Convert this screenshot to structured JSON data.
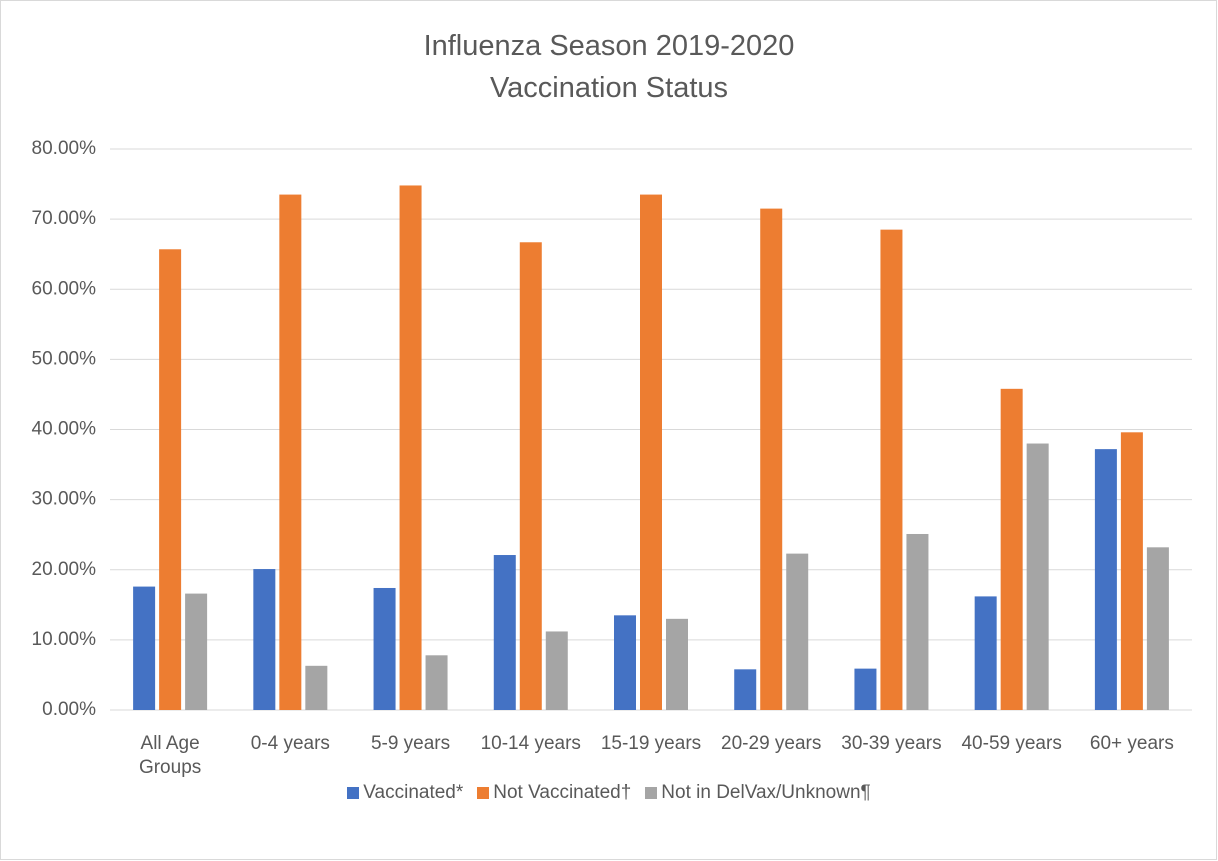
{
  "chart_data": {
    "type": "bar",
    "title": "Influenza Season 2019-2020",
    "subtitle": "Vaccination Status",
    "categories": [
      "All Age Groups",
      "0-4 years",
      "5-9 years",
      "10-14 years",
      "15-19 years",
      "20-29 years",
      "30-39 years",
      "40-59 years",
      "60+ years"
    ],
    "series": [
      {
        "name": "Vaccinated*",
        "color": "#4472c4",
        "values": [
          17.6,
          20.1,
          17.4,
          22.1,
          13.5,
          5.8,
          5.9,
          16.2,
          37.2
        ]
      },
      {
        "name": "Not Vaccinated†",
        "color": "#ed7d31",
        "values": [
          65.7,
          73.5,
          74.8,
          66.7,
          73.5,
          71.5,
          68.5,
          45.8,
          39.6
        ]
      },
      {
        "name": "Not in DelVax/Unknown¶",
        "color": "#a5a5a5",
        "values": [
          16.6,
          6.3,
          7.8,
          11.2,
          13.0,
          22.3,
          25.1,
          38.0,
          23.2
        ]
      }
    ],
    "ylim": [
      0,
      80
    ],
    "yticks": [
      {
        "value": 0,
        "label": "0.00%"
      },
      {
        "value": 10,
        "label": "10.00%"
      },
      {
        "value": 20,
        "label": "20.00%"
      },
      {
        "value": 30,
        "label": "30.00%"
      },
      {
        "value": 40,
        "label": "40.00%"
      },
      {
        "value": 50,
        "label": "50.00%"
      },
      {
        "value": 60,
        "label": "60.00%"
      },
      {
        "value": 70,
        "label": "70.00%"
      },
      {
        "value": 80,
        "label": "80.00%"
      }
    ],
    "grid": true,
    "legend": "bottom"
  }
}
